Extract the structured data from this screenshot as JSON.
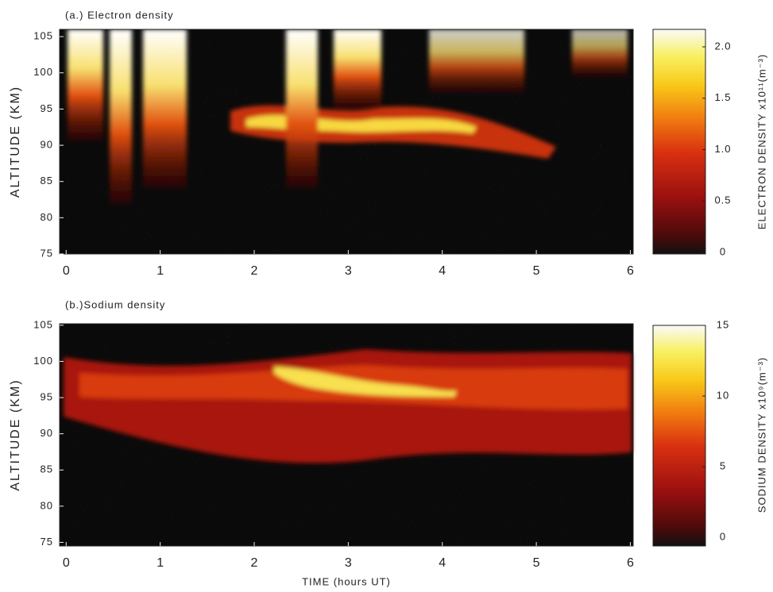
{
  "chart_data": [
    {
      "type": "heatmap",
      "title": "(a.) Electron density",
      "ylabel": "ALTITUDE (KM)",
      "xlim": [
        -0.07,
        6.03
      ],
      "xticks": [
        0,
        1,
        2,
        3,
        4,
        5,
        6
      ],
      "ylim": [
        75,
        106
      ],
      "yticks": [
        75,
        80,
        85,
        90,
        95,
        100,
        105
      ],
      "colorbar": {
        "label": "ELECTRON DENSITY x10¹¹(m⁻³)",
        "lim": [
          -0.015,
          2.17
        ],
        "ticks": [
          0,
          0.5,
          {
            "value": 1,
            "label": "1.0"
          },
          1.5,
          {
            "value": 2,
            "label": "2.0"
          }
        ]
      }
    },
    {
      "type": "heatmap",
      "title": "(b.)Sodium density",
      "ylabel": "ALTITUDE (KM)",
      "xlabel": "TIME (hours UT)",
      "xlim": [
        -0.07,
        6.03
      ],
      "xticks": [
        0,
        1,
        2,
        3,
        4,
        5,
        6
      ],
      "ylim": [
        74.5,
        105.2
      ],
      "yticks": [
        75,
        80,
        85,
        90,
        95,
        100,
        105
      ],
      "colorbar": {
        "label": "SODIUM DENSITY x10⁹(m⁻³)",
        "lim": [
          -0.6,
          15
        ],
        "ticks": [
          0,
          5,
          10,
          15
        ]
      }
    }
  ]
}
